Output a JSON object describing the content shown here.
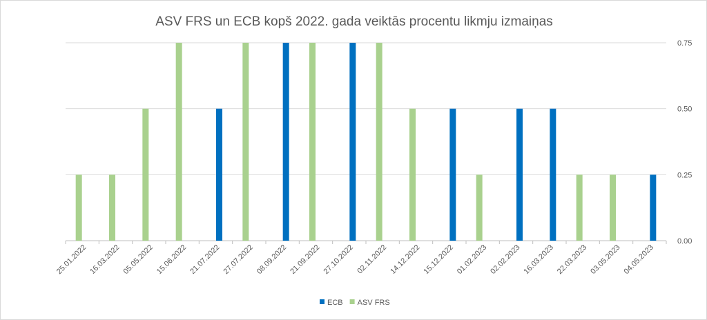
{
  "chart_data": {
    "type": "bar",
    "title": "ASV FRS un ECB kopš 2022. gada veiktās procentu likmju izmaiņas",
    "categories": [
      "25.01.2022",
      "16.03.2022",
      "05.05.2022",
      "15.06.2022",
      "21.07.2022",
      "27.07.2022",
      "08.09.2022",
      "21.09.2022",
      "27.10.2022",
      "02.11.2022",
      "14.12.2022",
      "15.12.2022",
      "01.02.2023",
      "02.02.2023",
      "16.03.2023",
      "22.03.2023",
      "03.05.2023",
      "04.05.2023"
    ],
    "series": [
      {
        "name": "ECB",
        "color": "#0070C0",
        "values": [
          0,
          0,
          0,
          0,
          0.5,
          0,
          0.75,
          0,
          0.75,
          0,
          0,
          0.5,
          0,
          0.5,
          0.5,
          0,
          0,
          0.25
        ]
      },
      {
        "name": "ASV FRS",
        "color": "#A9D18E",
        "values": [
          0.25,
          0.25,
          0.5,
          0.75,
          0,
          0.75,
          0,
          0.75,
          0,
          0.75,
          0.5,
          0,
          0.25,
          0,
          0,
          0.25,
          0.25,
          0
        ]
      }
    ],
    "ylim": [
      0,
      0.75
    ],
    "yticks": [
      "0.00",
      "0.25",
      "0.50",
      "0.75"
    ],
    "y_axis_side": "right",
    "grid": true,
    "legend": "bottom"
  }
}
